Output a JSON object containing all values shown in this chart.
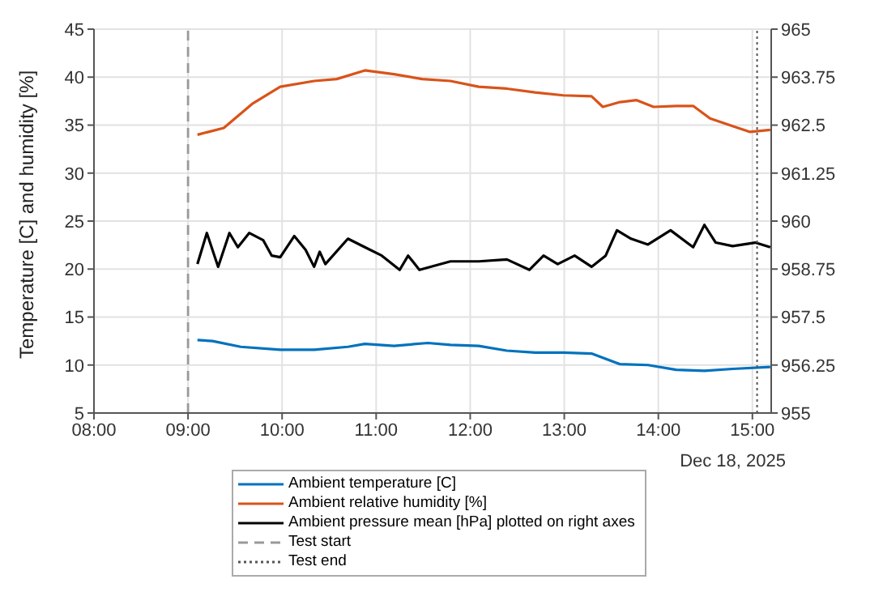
{
  "chart_data": {
    "type": "line",
    "ylabel": "Temperature [C] and humidity [%]",
    "annotations": [
      "Dec 18, 2025"
    ],
    "xlim": [
      8,
      15.2
    ],
    "xticks": [
      {
        "value": 8,
        "label": "08:00"
      },
      {
        "value": 9,
        "label": "09:00"
      },
      {
        "value": 10,
        "label": "10:00"
      },
      {
        "value": 11,
        "label": "11:00"
      },
      {
        "value": 12,
        "label": "12:00"
      },
      {
        "value": 13,
        "label": "13:00"
      },
      {
        "value": 14,
        "label": "14:00"
      },
      {
        "value": 15,
        "label": "15:00"
      }
    ],
    "ylim": [
      5,
      45
    ],
    "yticks": [
      5,
      10,
      15,
      20,
      25,
      30,
      35,
      40,
      45
    ],
    "y2lim": [
      955,
      965
    ],
    "y2ticks": [
      955,
      956.25,
      957.5,
      958.75,
      960,
      961.25,
      962.5,
      963.75,
      965
    ],
    "grid": true,
    "legend": "bottom",
    "line_style": "solid",
    "series": [
      {
        "name": "Ambient temperature [C]",
        "color": "#0072bd",
        "x": [
          9.1,
          9.26,
          9.56,
          9.98,
          10.34,
          10.7,
          10.88,
          11.19,
          11.55,
          11.79,
          12.09,
          12.39,
          12.69,
          12.99,
          13.29,
          13.59,
          13.89,
          14.19,
          14.49,
          14.79,
          15.19
        ],
        "values": [
          12.6,
          12.5,
          11.9,
          11.6,
          11.6,
          11.9,
          12.2,
          12.0,
          12.3,
          12.1,
          12.0,
          11.5,
          11.3,
          11.3,
          11.2,
          10.1,
          10.0,
          9.5,
          9.4,
          9.6,
          9.8
        ]
      },
      {
        "name": "Ambient relative humidity [%]",
        "color": "#d95319",
        "x": [
          9.1,
          9.38,
          9.68,
          9.98,
          10.34,
          10.58,
          10.88,
          11.19,
          11.49,
          11.79,
          12.09,
          12.39,
          12.69,
          12.99,
          13.29,
          13.41,
          13.59,
          13.77,
          13.95,
          14.19,
          14.37,
          14.55,
          14.79,
          14.97,
          15.19
        ],
        "values": [
          34.0,
          34.7,
          37.2,
          39.0,
          39.6,
          39.8,
          40.7,
          40.3,
          39.8,
          39.6,
          39.0,
          38.8,
          38.4,
          38.1,
          38.0,
          36.9,
          37.4,
          37.6,
          36.9,
          37.0,
          37.0,
          35.7,
          34.9,
          34.3,
          34.5
        ]
      },
      {
        "name": "Ambient pressure mean [hPa] plotted on right axes",
        "color": "#000000",
        "axis": "y2",
        "x": [
          9.1,
          9.2,
          9.32,
          9.44,
          9.53,
          9.65,
          9.8,
          9.89,
          9.98,
          10.13,
          10.25,
          10.34,
          10.4,
          10.46,
          10.7,
          10.88,
          11.06,
          11.25,
          11.34,
          11.46,
          11.79,
          12.09,
          12.39,
          12.63,
          12.78,
          12.93,
          13.11,
          13.29,
          13.44,
          13.56,
          13.71,
          13.89,
          14.13,
          14.37,
          14.49,
          14.61,
          14.79,
          15.03,
          15.19
        ],
        "values": [
          958.88,
          959.69,
          958.81,
          959.69,
          959.32,
          959.69,
          959.5,
          959.1,
          959.06,
          959.61,
          959.25,
          958.81,
          959.2,
          958.88,
          959.54,
          959.32,
          959.1,
          958.73,
          959.1,
          958.73,
          958.95,
          958.95,
          959.0,
          958.73,
          959.1,
          958.88,
          959.1,
          958.81,
          959.1,
          959.76,
          959.54,
          959.39,
          959.76,
          959.32,
          959.9,
          959.44,
          959.35,
          959.44,
          959.32
        ]
      }
    ],
    "ref_lines": [
      {
        "axis": "x",
        "value": 9,
        "label": "Test start",
        "color": "#999999",
        "line_style": "dashed"
      },
      {
        "axis": "x",
        "value": 15.05,
        "label": "Test end",
        "color": "#555555",
        "line_style": "dotted"
      }
    ]
  }
}
